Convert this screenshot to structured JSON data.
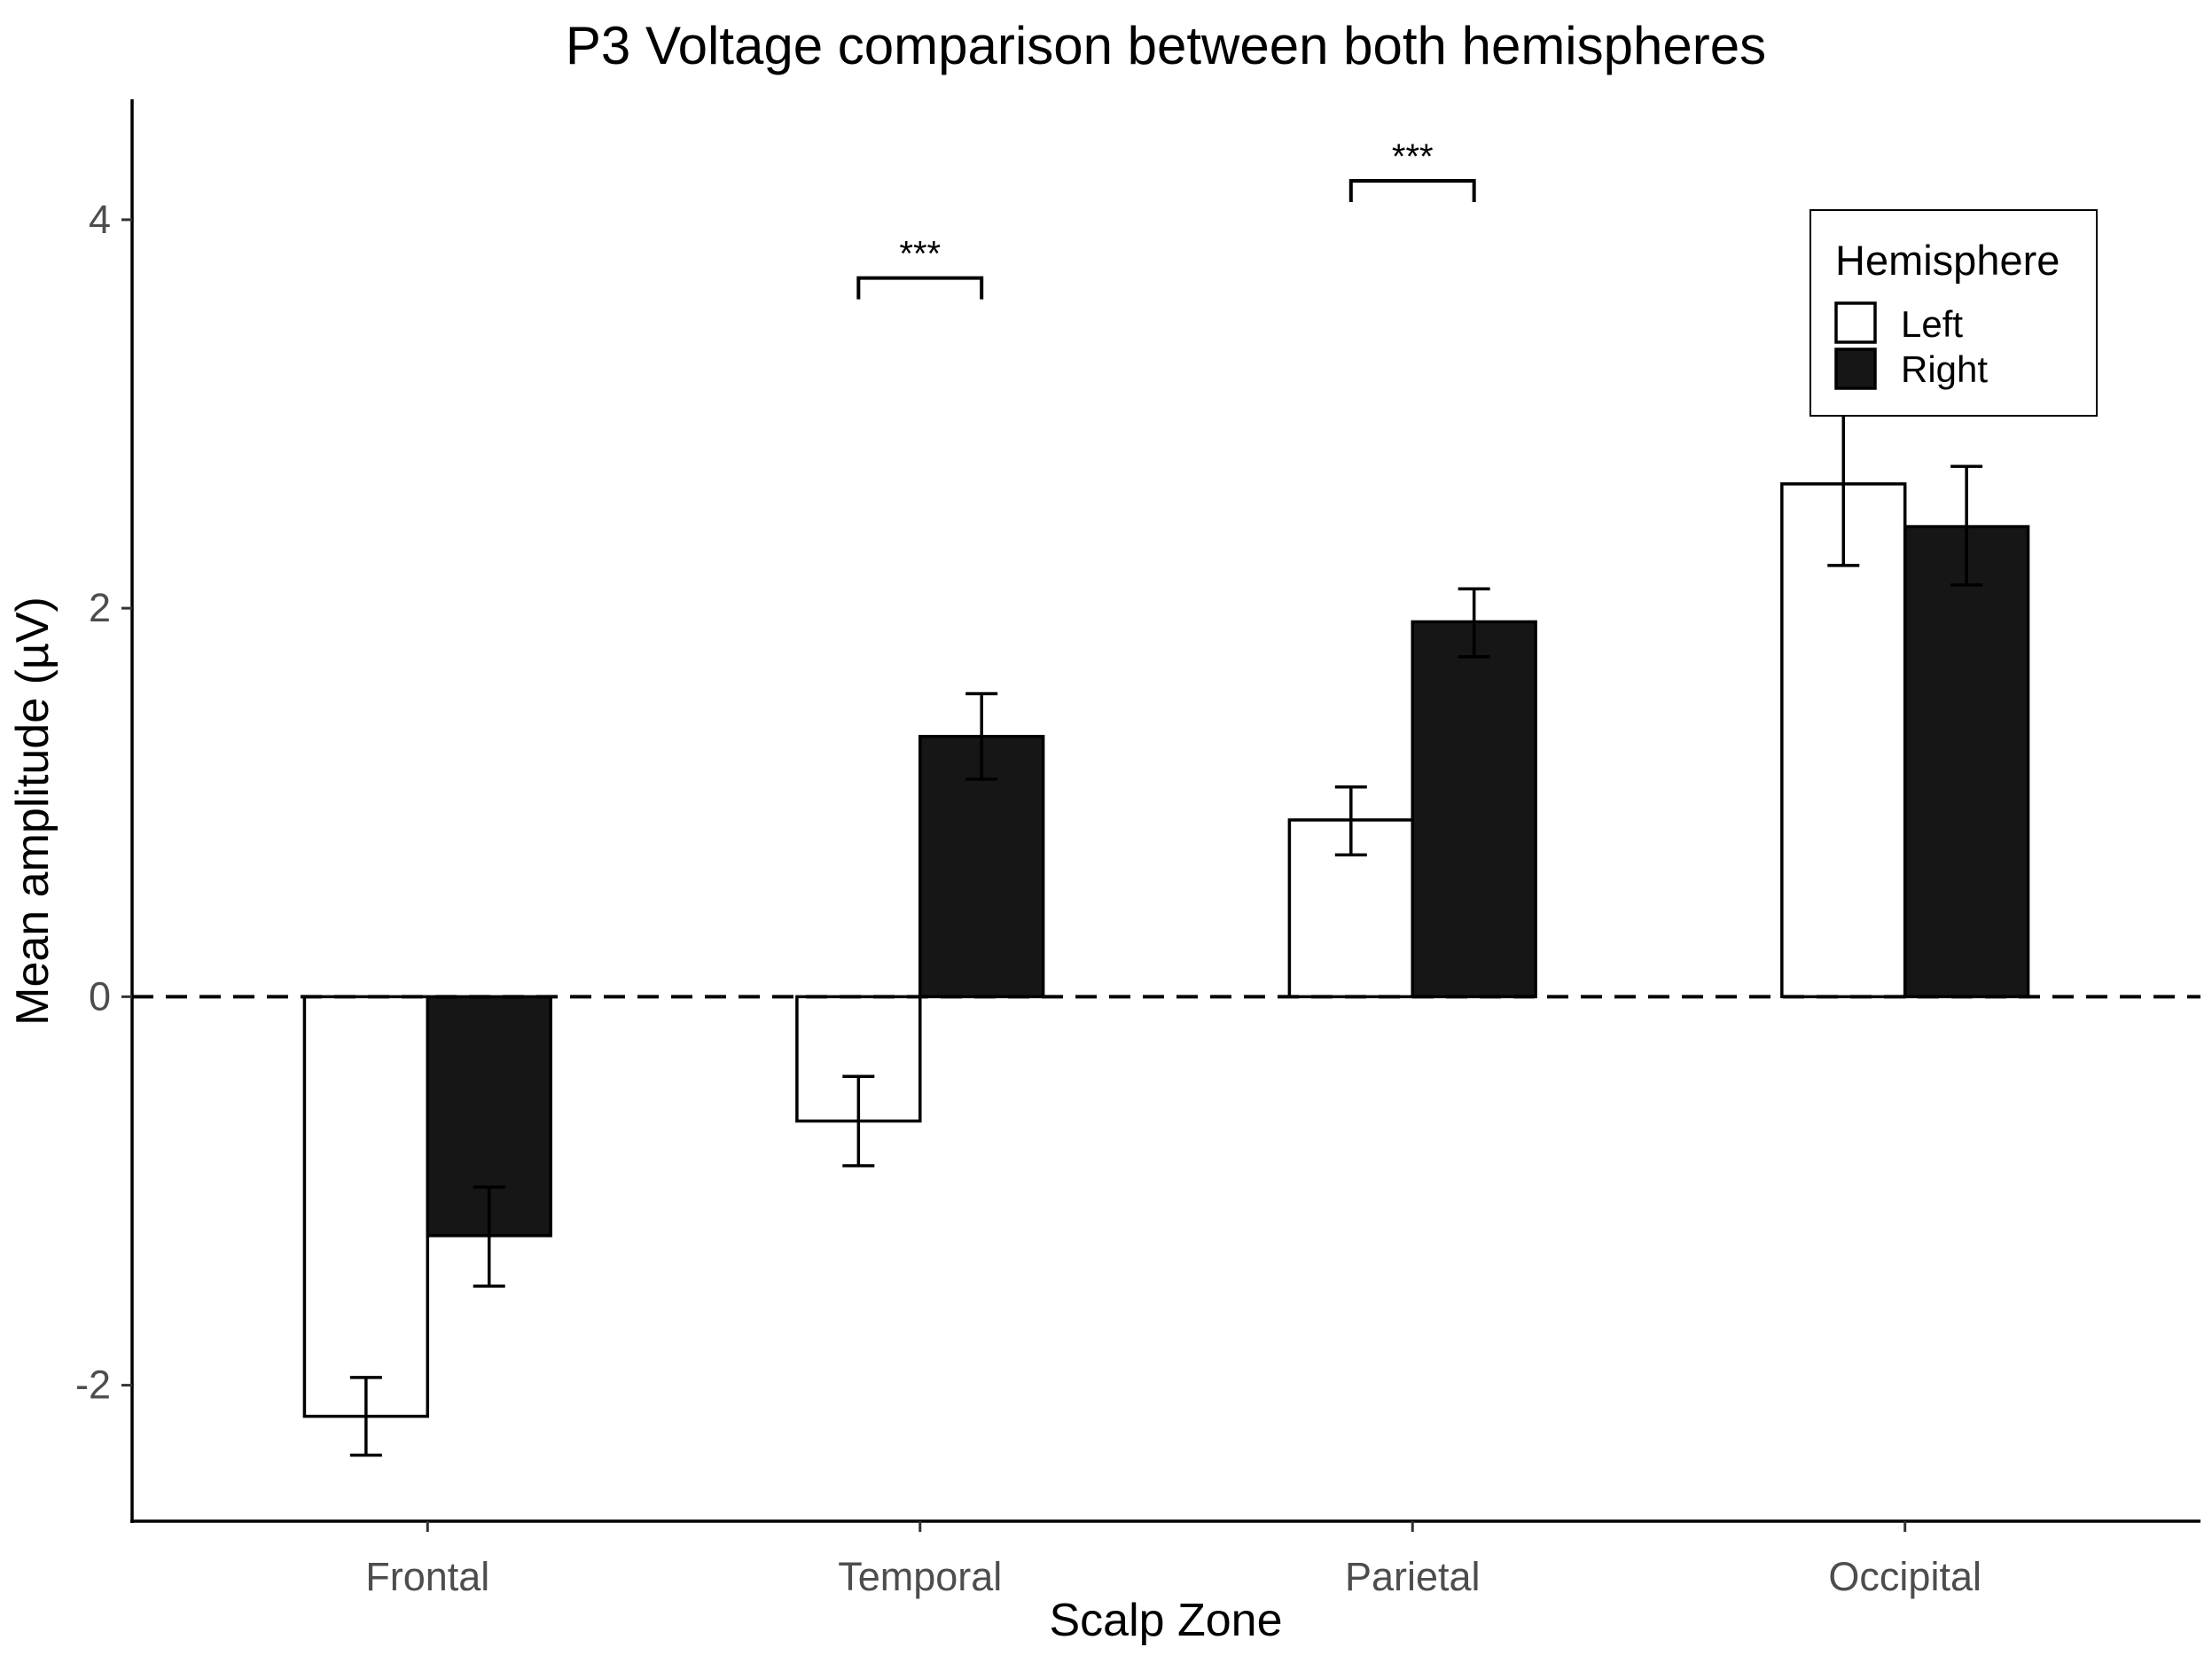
{
  "chart_data": {
    "type": "bar",
    "title": "P3 Voltage comparison between both hemispheres",
    "xlabel": "Scalp Zone",
    "ylabel": "Mean amplitude (µV)",
    "categories": [
      "Frontal",
      "Temporal",
      "Parietal",
      "Occipital"
    ],
    "ylim": [
      -2.7,
      4.62
    ],
    "yticks": [
      -2,
      0,
      2,
      4
    ],
    "ytick_labels": [
      "-2",
      "0",
      "2",
      "4"
    ],
    "reference_line": {
      "y": 0,
      "style": "dashed"
    },
    "grid": false,
    "legend": {
      "title": "Hemisphere",
      "position": "top-right"
    },
    "series": [
      {
        "name": "Left",
        "fill": "#ffffff",
        "values": [
          -2.16,
          -0.64,
          0.91,
          2.64
        ],
        "err_low": [
          -2.36,
          -0.87,
          0.73,
          2.22
        ],
        "err_high": [
          -1.96,
          -0.41,
          1.08,
          3.05
        ]
      },
      {
        "name": "Right",
        "fill": "#161616",
        "values": [
          -1.23,
          1.34,
          1.93,
          2.42
        ],
        "err_low": [
          -1.49,
          1.12,
          1.75,
          2.12
        ],
        "err_high": [
          -0.98,
          1.56,
          2.1,
          2.73
        ]
      }
    ],
    "annotations": [
      {
        "category": "Temporal",
        "label": "***",
        "y": 3.7
      },
      {
        "category": "Parietal",
        "label": "***",
        "y": 4.2
      }
    ]
  },
  "colors": {
    "outline": "#000000",
    "tick_text": "#4d4d4d"
  }
}
